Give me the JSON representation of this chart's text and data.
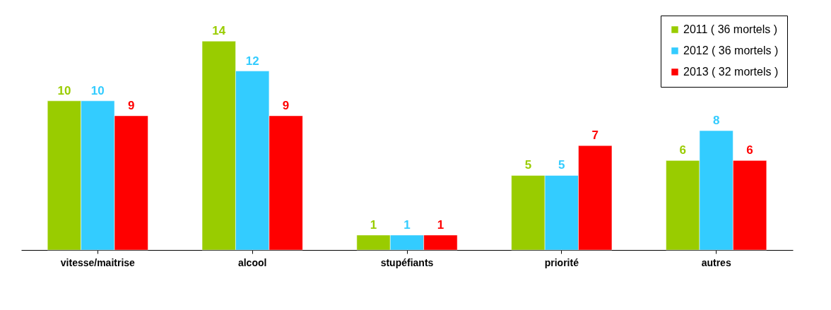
{
  "chart_data": {
    "type": "bar",
    "categories": [
      "vitesse/maitrise",
      "alcool",
      "stupéfiants",
      "priorité",
      "autres"
    ],
    "series": [
      {
        "name": "2011 ( 36 mortels )",
        "color": "#99cc00",
        "values": [
          10,
          14,
          1,
          5,
          6
        ]
      },
      {
        "name": "2012 ( 36 mortels )",
        "color": "#33ccff",
        "values": [
          10,
          12,
          1,
          5,
          8
        ]
      },
      {
        "name": "2013 ( 32 mortels )",
        "color": "#ff0000",
        "values": [
          9,
          9,
          1,
          7,
          6
        ]
      }
    ],
    "data_labels": true,
    "legend": "top right",
    "grid": false
  }
}
